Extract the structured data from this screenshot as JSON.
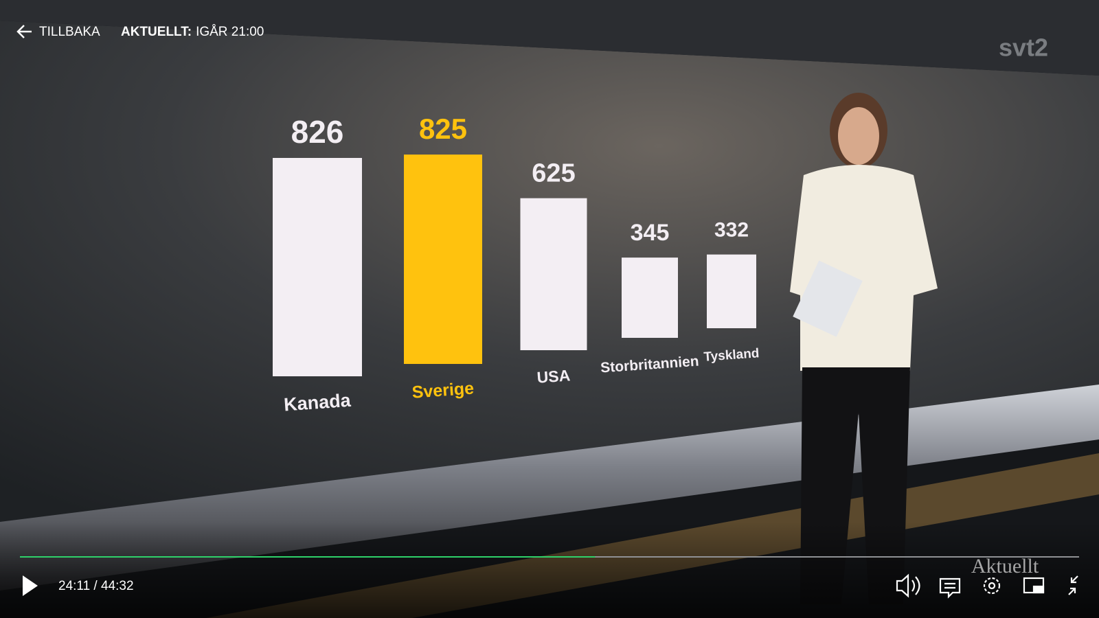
{
  "player": {
    "back": "TILLBAKA",
    "program": "AKTUELLT:",
    "airtime": "IGÅR 21:00",
    "channel_logo": "svt2",
    "show_logo": "Aktuellt",
    "time": "24:11 / 44:32"
  },
  "chart_data": {
    "type": "bar",
    "categories": [
      "Kanada",
      "Sverige",
      "USA",
      "Storbritannien",
      "Tyskland"
    ],
    "values": [
      826,
      825,
      625,
      345,
      332
    ],
    "colors": [
      "#f3eef3",
      "#ffc20e",
      "#f3eef3",
      "#f3eef3",
      "#f3eef3"
    ]
  }
}
